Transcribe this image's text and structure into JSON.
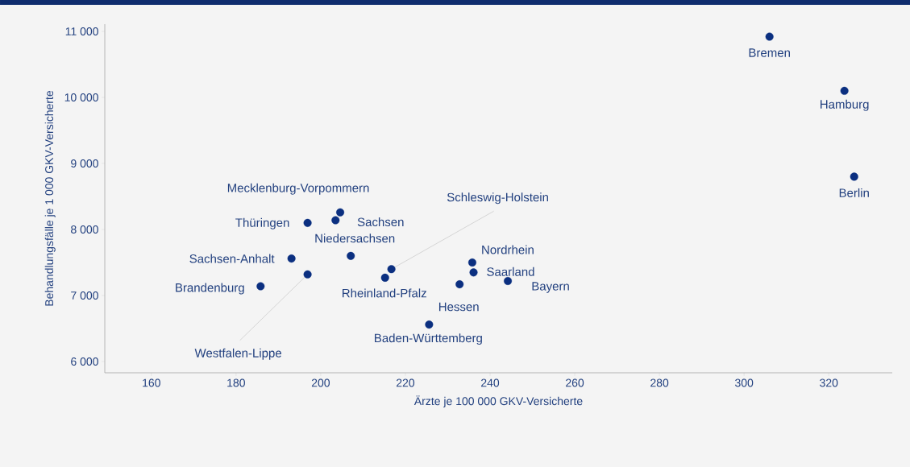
{
  "chart_data": {
    "type": "scatter",
    "xlabel": "Ärzte je 100 000 GKV-Versicherte",
    "ylabel": "Behandlungsfälle je 1 000 GKV-Versicherte",
    "xlim": [
      149,
      335
    ],
    "ylim": [
      5830,
      11110
    ],
    "xticks": [
      160,
      180,
      200,
      220,
      240,
      260,
      280,
      300,
      320
    ],
    "yticks": [
      {
        "value": 6000,
        "label": "6 000"
      },
      {
        "value": 7000,
        "label": "7 000"
      },
      {
        "value": 8000,
        "label": "8 000"
      },
      {
        "value": 9000,
        "label": "9 000"
      },
      {
        "value": 10000,
        "label": "10 000"
      },
      {
        "value": 11000,
        "label": "11 000"
      }
    ],
    "grid": false,
    "marker": "circle",
    "series": [
      {
        "color": "#0b2f80",
        "x": [
          204.6,
          203.5,
          196.9,
          207.1,
          193.1,
          196.9,
          185.8,
          216.7,
          215.2,
          235.8,
          236.1,
          232.8,
          244.2,
          225.6,
          306,
          323.7,
          326
        ],
        "values": [
          8260,
          8140,
          8100,
          7600,
          7560,
          7320,
          7140,
          7400,
          7270,
          7500,
          7350,
          7170,
          7220,
          6560,
          10920,
          10100,
          8800
        ]
      }
    ],
    "annotations": [
      {
        "text": "Mecklenburg-Vorpommern",
        "x": 204.6,
        "y": 8260
      },
      {
        "text": "Sachsen",
        "x": 203.5,
        "y": 8140
      },
      {
        "text": "Thüringen",
        "x": 196.9,
        "y": 8100
      },
      {
        "text": "Niedersachsen",
        "x": 207.1,
        "y": 7600
      },
      {
        "text": "Sachsen-Anhalt",
        "x": 193.1,
        "y": 7560
      },
      {
        "text": "Westfalen-Lippe",
        "x": 196.9,
        "y": 7320
      },
      {
        "text": "Brandenburg",
        "x": 185.8,
        "y": 7140
      },
      {
        "text": "Schleswig-Holstein",
        "x": 216.7,
        "y": 7400
      },
      {
        "text": "Rheinland-Pfalz",
        "x": 215.2,
        "y": 7270
      },
      {
        "text": "Nordrhein",
        "x": 235.8,
        "y": 7500
      },
      {
        "text": "Saarland",
        "x": 236.1,
        "y": 7350
      },
      {
        "text": "Hessen",
        "x": 232.8,
        "y": 7170
      },
      {
        "text": "Bayern",
        "x": 244.2,
        "y": 7220
      },
      {
        "text": "Baden-Württemberg",
        "x": 225.6,
        "y": 6560
      },
      {
        "text": "Bremen",
        "x": 306,
        "y": 10920
      },
      {
        "text": "Hamburg",
        "x": 323.7,
        "y": 10100
      },
      {
        "text": "Berlin",
        "x": 326,
        "y": 8800
      }
    ]
  }
}
